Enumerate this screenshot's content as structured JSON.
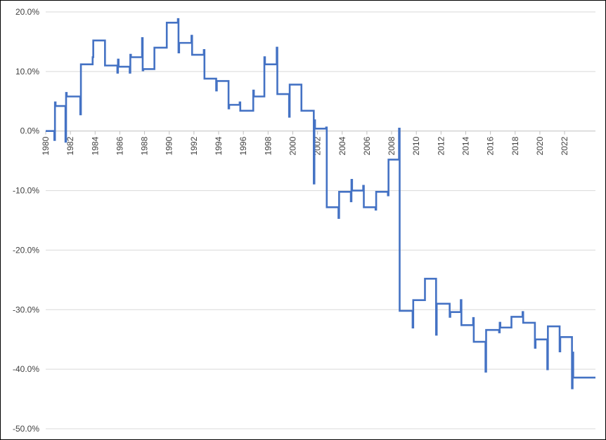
{
  "chart_data": {
    "type": "line",
    "title": "",
    "xlabel": "",
    "ylabel": "",
    "xlim": [
      1980,
      2024.5
    ],
    "ylim": [
      -50,
      20
    ],
    "grid": "horizontal",
    "legend": "none",
    "line_color": "#4472C4",
    "y_ticks": [
      {
        "value": 20,
        "label": "20.0%"
      },
      {
        "value": 10,
        "label": "10.0%"
      },
      {
        "value": 0,
        "label": "0.0%"
      },
      {
        "value": -10,
        "label": "-10.0%"
      },
      {
        "value": -20,
        "label": "-20.0%"
      },
      {
        "value": -30,
        "label": "-30.0%"
      },
      {
        "value": -40,
        "label": "-40.0%"
      },
      {
        "value": -50,
        "label": "-50.0%"
      }
    ],
    "x_ticks": [
      {
        "value": 1980,
        "label": "1980"
      },
      {
        "value": 1982,
        "label": "1982"
      },
      {
        "value": 1984,
        "label": "1984"
      },
      {
        "value": 1986,
        "label": "1986"
      },
      {
        "value": 1988,
        "label": "1988"
      },
      {
        "value": 1990,
        "label": "1990"
      },
      {
        "value": 1992,
        "label": "1992"
      },
      {
        "value": 1994,
        "label": "1994"
      },
      {
        "value": 1996,
        "label": "1996"
      },
      {
        "value": 1998,
        "label": "1998"
      },
      {
        "value": 2000,
        "label": "2000"
      },
      {
        "value": 2002,
        "label": "2002"
      },
      {
        "value": 2004,
        "label": "2004"
      },
      {
        "value": 2006,
        "label": "2006"
      },
      {
        "value": 2008,
        "label": "2008"
      },
      {
        "value": 2010,
        "label": "2010"
      },
      {
        "value": 2012,
        "label": "2012"
      },
      {
        "value": 2014,
        "label": "2014"
      },
      {
        "value": 2016,
        "label": "2016"
      },
      {
        "value": 2018,
        "label": "2018"
      },
      {
        "value": 2020,
        "label": "2020"
      },
      {
        "value": 2022,
        "label": "2022"
      }
    ],
    "series": [
      {
        "color": "#4472C4",
        "points": [
          [
            1980.0,
            0.0
          ],
          [
            1980.7,
            0.0
          ],
          [
            1980.7,
            -1.5
          ],
          [
            1980.75,
            -1.5
          ],
          [
            1980.75,
            4.8
          ],
          [
            1980.8,
            4.8
          ],
          [
            1980.8,
            4.2
          ],
          [
            1981.6,
            4.2
          ],
          [
            1981.6,
            -1.8
          ],
          [
            1981.65,
            -1.8
          ],
          [
            1981.65,
            6.4
          ],
          [
            1981.7,
            6.4
          ],
          [
            1981.7,
            5.8
          ],
          [
            1982.8,
            5.8
          ],
          [
            1982.8,
            2.8
          ],
          [
            1982.85,
            2.8
          ],
          [
            1982.85,
            11.2
          ],
          [
            1983.8,
            11.2
          ],
          [
            1983.8,
            12.4
          ],
          [
            1983.85,
            12.4
          ],
          [
            1983.85,
            15.2
          ],
          [
            1984.8,
            15.2
          ],
          [
            1984.8,
            11.0
          ],
          [
            1985.8,
            11.0
          ],
          [
            1985.8,
            9.8
          ],
          [
            1985.85,
            9.8
          ],
          [
            1985.85,
            12.0
          ],
          [
            1985.9,
            12.0
          ],
          [
            1985.9,
            10.8
          ],
          [
            1986.8,
            10.8
          ],
          [
            1986.8,
            9.8
          ],
          [
            1986.85,
            9.8
          ],
          [
            1986.85,
            12.8
          ],
          [
            1986.9,
            12.8
          ],
          [
            1986.9,
            12.4
          ],
          [
            1987.8,
            12.4
          ],
          [
            1987.8,
            15.6
          ],
          [
            1987.85,
            15.6
          ],
          [
            1987.85,
            10.2
          ],
          [
            1987.9,
            10.2
          ],
          [
            1987.9,
            10.4
          ],
          [
            1988.8,
            10.4
          ],
          [
            1988.8,
            14.0
          ],
          [
            1989.8,
            14.0
          ],
          [
            1989.8,
            18.2
          ],
          [
            1990.7,
            18.2
          ],
          [
            1990.7,
            18.8
          ],
          [
            1990.75,
            18.8
          ],
          [
            1990.75,
            13.2
          ],
          [
            1990.8,
            13.2
          ],
          [
            1990.8,
            14.8
          ],
          [
            1991.8,
            14.8
          ],
          [
            1991.8,
            16.0
          ],
          [
            1991.85,
            16.0
          ],
          [
            1991.85,
            12.8
          ],
          [
            1992.8,
            12.8
          ],
          [
            1992.8,
            13.6
          ],
          [
            1992.85,
            13.6
          ],
          [
            1992.85,
            8.8
          ],
          [
            1993.8,
            8.8
          ],
          [
            1993.8,
            6.8
          ],
          [
            1993.85,
            6.8
          ],
          [
            1993.85,
            8.4
          ],
          [
            1994.8,
            8.4
          ],
          [
            1994.8,
            3.8
          ],
          [
            1994.85,
            3.8
          ],
          [
            1994.85,
            4.4
          ],
          [
            1995.7,
            4.4
          ],
          [
            1995.7,
            4.8
          ],
          [
            1995.75,
            4.8
          ],
          [
            1995.75,
            3.4
          ],
          [
            1996.8,
            3.4
          ],
          [
            1996.8,
            6.8
          ],
          [
            1996.85,
            6.8
          ],
          [
            1996.85,
            5.8
          ],
          [
            1997.7,
            5.8
          ],
          [
            1997.7,
            12.4
          ],
          [
            1997.75,
            12.4
          ],
          [
            1997.75,
            11.2
          ],
          [
            1998.7,
            11.2
          ],
          [
            1998.7,
            14.0
          ],
          [
            1998.75,
            14.0
          ],
          [
            1998.75,
            6.2
          ],
          [
            1999.7,
            6.2
          ],
          [
            1999.7,
            2.4
          ],
          [
            1999.75,
            2.4
          ],
          [
            1999.75,
            7.8
          ],
          [
            2000.7,
            7.8
          ],
          [
            2000.7,
            3.4
          ],
          [
            2001.7,
            3.4
          ],
          [
            2001.7,
            -8.8
          ],
          [
            2001.75,
            -8.8
          ],
          [
            2001.75,
            1.8
          ],
          [
            2001.8,
            1.8
          ],
          [
            2001.8,
            0.4
          ],
          [
            2002.7,
            0.4
          ],
          [
            2002.7,
            0.6
          ],
          [
            2002.75,
            0.6
          ],
          [
            2002.75,
            -12.8
          ],
          [
            2003.7,
            -12.8
          ],
          [
            2003.7,
            -14.6
          ],
          [
            2003.75,
            -14.6
          ],
          [
            2003.75,
            -10.2
          ],
          [
            2004.7,
            -10.2
          ],
          [
            2004.7,
            -11.8
          ],
          [
            2004.75,
            -11.8
          ],
          [
            2004.75,
            -8.2
          ],
          [
            2004.8,
            -8.2
          ],
          [
            2004.8,
            -10.0
          ],
          [
            2005.7,
            -10.0
          ],
          [
            2005.7,
            -9.2
          ],
          [
            2005.75,
            -9.2
          ],
          [
            2005.75,
            -12.8
          ],
          [
            2006.7,
            -12.8
          ],
          [
            2006.7,
            -13.2
          ],
          [
            2006.75,
            -13.2
          ],
          [
            2006.75,
            -10.2
          ],
          [
            2007.7,
            -10.2
          ],
          [
            2007.7,
            -10.8
          ],
          [
            2007.75,
            -10.8
          ],
          [
            2007.75,
            -4.8
          ],
          [
            2008.6,
            -4.8
          ],
          [
            2008.6,
            0.4
          ],
          [
            2008.65,
            0.4
          ],
          [
            2008.65,
            -30.2
          ],
          [
            2009.7,
            -30.2
          ],
          [
            2009.7,
            -33.0
          ],
          [
            2009.75,
            -33.0
          ],
          [
            2009.75,
            -28.4
          ],
          [
            2010.7,
            -28.4
          ],
          [
            2010.7,
            -24.8
          ],
          [
            2011.6,
            -24.8
          ],
          [
            2011.6,
            -34.2
          ],
          [
            2011.65,
            -34.2
          ],
          [
            2011.65,
            -29.0
          ],
          [
            2012.7,
            -29.0
          ],
          [
            2012.7,
            -31.2
          ],
          [
            2012.75,
            -31.2
          ],
          [
            2012.75,
            -30.4
          ],
          [
            2013.6,
            -30.4
          ],
          [
            2013.6,
            -28.4
          ],
          [
            2013.65,
            -28.4
          ],
          [
            2013.65,
            -32.6
          ],
          [
            2014.6,
            -32.6
          ],
          [
            2014.6,
            -31.4
          ],
          [
            2014.65,
            -31.4
          ],
          [
            2014.65,
            -35.4
          ],
          [
            2015.6,
            -35.4
          ],
          [
            2015.6,
            -40.4
          ],
          [
            2015.65,
            -40.4
          ],
          [
            2015.65,
            -33.4
          ],
          [
            2016.7,
            -33.4
          ],
          [
            2016.7,
            -33.8
          ],
          [
            2016.75,
            -33.8
          ],
          [
            2016.75,
            -32.2
          ],
          [
            2016.8,
            -32.2
          ],
          [
            2016.8,
            -33.0
          ],
          [
            2017.7,
            -33.0
          ],
          [
            2017.7,
            -31.2
          ],
          [
            2018.6,
            -31.2
          ],
          [
            2018.6,
            -30.4
          ],
          [
            2018.65,
            -30.4
          ],
          [
            2018.65,
            -32.2
          ],
          [
            2019.6,
            -32.2
          ],
          [
            2019.6,
            -36.4
          ],
          [
            2019.65,
            -36.4
          ],
          [
            2019.65,
            -35.0
          ],
          [
            2020.6,
            -35.0
          ],
          [
            2020.6,
            -40.0
          ],
          [
            2020.65,
            -40.0
          ],
          [
            2020.65,
            -32.8
          ],
          [
            2021.6,
            -32.8
          ],
          [
            2021.6,
            -37.0
          ],
          [
            2021.65,
            -37.0
          ],
          [
            2021.65,
            -34.6
          ],
          [
            2022.6,
            -34.6
          ],
          [
            2022.6,
            -43.2
          ],
          [
            2022.65,
            -43.2
          ],
          [
            2022.65,
            -37.2
          ],
          [
            2022.7,
            -37.2
          ],
          [
            2022.7,
            -41.4
          ],
          [
            2024.5,
            -41.4
          ]
        ]
      }
    ]
  }
}
